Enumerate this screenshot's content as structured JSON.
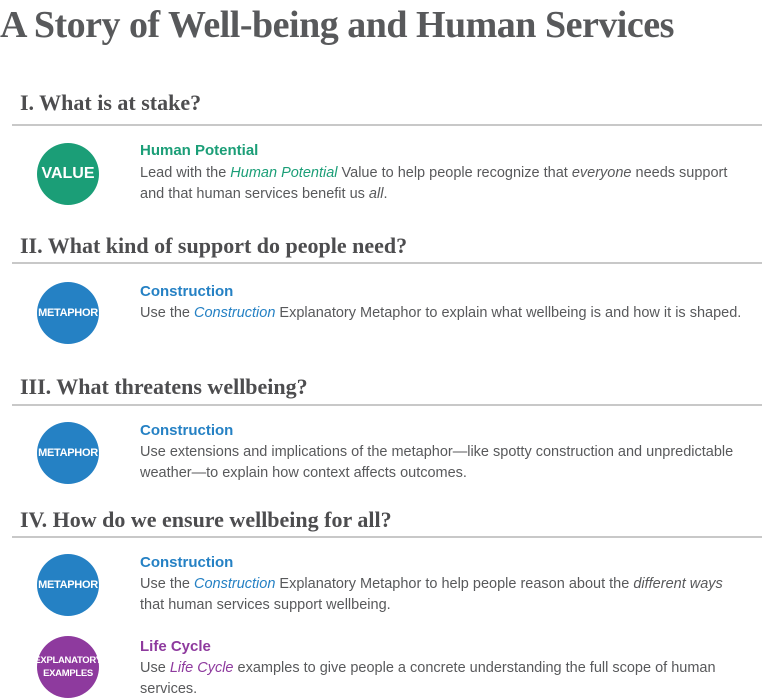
{
  "title": "A Story of Well-being and Human Services",
  "sections": [
    {
      "heading": "I. What is at stake?",
      "items": [
        {
          "badge": "VALUE",
          "title": "Human Potential",
          "text": [
            "Lead with the ",
            "Human Potential",
            " Value to help people recognize that ",
            "everyone",
            " needs support and that human services benefit us ",
            "all",
            "."
          ]
        }
      ]
    },
    {
      "heading": "II. What kind of support do people need?",
      "items": [
        {
          "badge": "METAPHOR",
          "title": "Construction",
          "text": [
            "Use the ",
            "Construction",
            " Explanatory Metaphor to explain what wellbeing is and how it is shaped."
          ]
        }
      ]
    },
    {
      "heading": "III. What threatens wellbeing?",
      "items": [
        {
          "badge": "METAPHOR",
          "title": "Construction",
          "text": [
            "Use extensions and implications of the metaphor—like spotty construction and unpredictable weather—to explain how context affects outcomes."
          ]
        }
      ]
    },
    {
      "heading": "IV. How do we ensure wellbeing for all?",
      "items": [
        {
          "badge": "METAPHOR",
          "title": "Construction",
          "text": [
            "Use the ",
            "Construction",
            " Explanatory Metaphor to help people reason about the ",
            "different ways",
            " that human services support wellbeing."
          ]
        },
        {
          "badge_line1": "EXPLANATORY",
          "badge_line2": "EXAMPLES",
          "title": "Life Cycle",
          "text": [
            "Use ",
            "Life Cycle",
            " examples to give people a concrete understanding the full scope of human services."
          ]
        }
      ]
    }
  ],
  "colors": {
    "value_green": "#1b9e77",
    "metaphor_blue": "#2581c4",
    "examples_purple": "#8e3a9e",
    "text_gray": "#58595b"
  }
}
